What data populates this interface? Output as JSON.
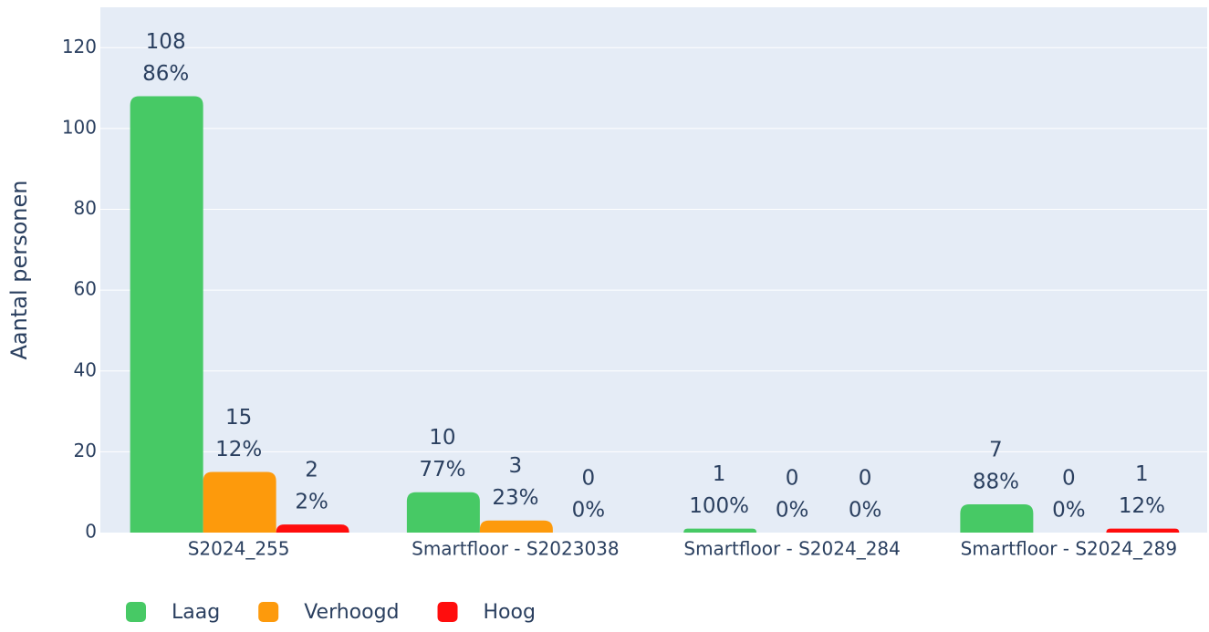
{
  "chart_data": {
    "type": "bar",
    "y_label": "Aantal personen",
    "categories": [
      "S2024_255",
      "Smartfloor - S2023038",
      "Smartfloor - S2024_284",
      "Smartfloor - S2024_289"
    ],
    "series": [
      {
        "name": "Laag",
        "color": "#47c965",
        "values": [
          108,
          10,
          1,
          7
        ],
        "percent_labels": [
          "86%",
          "77%",
          "100%",
          "88%"
        ]
      },
      {
        "name": "Verhoogd",
        "color": "#fd9a0c",
        "values": [
          15,
          3,
          0,
          0
        ],
        "percent_labels": [
          "12%",
          "23%",
          "0%",
          "0%"
        ]
      },
      {
        "name": "Hoog",
        "color": "#ff0d0d",
        "values": [
          2,
          0,
          0,
          1
        ],
        "percent_labels": [
          "2%",
          "0%",
          "0%",
          "12%"
        ]
      }
    ],
    "ylim": [
      0,
      130
    ],
    "yticks": [
      0,
      20,
      40,
      60,
      80,
      100,
      120
    ],
    "grid": true,
    "legend": "bottom"
  }
}
